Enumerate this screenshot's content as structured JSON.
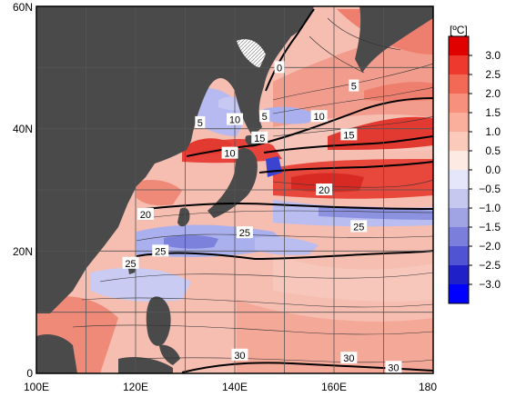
{
  "map": {
    "x_ticks": [
      "100E",
      "120E",
      "140E",
      "160E",
      "180"
    ],
    "y_ticks": [
      "60N",
      "40N",
      "20N",
      "0"
    ],
    "lon_range": [
      100,
      180
    ],
    "lat_range": [
      0,
      60
    ],
    "contour_labels": [
      {
        "text": "0",
        "lon": 149,
        "lat": 50
      },
      {
        "text": "5",
        "lon": 133,
        "lat": 41
      },
      {
        "text": "10",
        "lon": 140,
        "lat": 41.5
      },
      {
        "text": "5",
        "lon": 146,
        "lat": 42
      },
      {
        "text": "5",
        "lon": 164,
        "lat": 47
      },
      {
        "text": "10",
        "lon": 157,
        "lat": 42
      },
      {
        "text": "15",
        "lon": 145,
        "lat": 38.5
      },
      {
        "text": "15",
        "lon": 163,
        "lat": 39
      },
      {
        "text": "10",
        "lon": 139,
        "lat": 36
      },
      {
        "text": "20",
        "lon": 122,
        "lat": 26
      },
      {
        "text": "20",
        "lon": 158,
        "lat": 30
      },
      {
        "text": "25",
        "lon": 125,
        "lat": 20
      },
      {
        "text": "25",
        "lon": 142,
        "lat": 23
      },
      {
        "text": "25",
        "lon": 165,
        "lat": 24
      },
      {
        "text": "25",
        "lon": 119,
        "lat": 18
      },
      {
        "text": "30",
        "lon": 141,
        "lat": 3
      },
      {
        "text": "30",
        "lon": 163,
        "lat": 2.5
      },
      {
        "text": "30",
        "lon": 172,
        "lat": 1
      }
    ]
  },
  "colorbar": {
    "unit": "[ºC]",
    "ticks": [
      "3.0",
      "2.5",
      "2.0",
      "1.5",
      "1.0",
      "0.5",
      "0.0",
      "−0.5",
      "−1.0",
      "−1.5",
      "−2.0",
      "−2.5",
      "−3.0"
    ],
    "colors": [
      "#e00000",
      "#ee3a2e",
      "#f26a55",
      "#f7907c",
      "#faae9c",
      "#fbcabb",
      "#fdeae2",
      "#e6e6fa",
      "#c6c8ef",
      "#a0a4e4",
      "#7b7fdb",
      "#5154d2",
      "#2020c8",
      "#0000ff"
    ]
  },
  "colors": {
    "land": "#4a4a4a",
    "warm": "#f3a090",
    "cool": "#aab0ee",
    "strong_warm": "#e23a30",
    "strong_cool": "#3b44d0"
  }
}
